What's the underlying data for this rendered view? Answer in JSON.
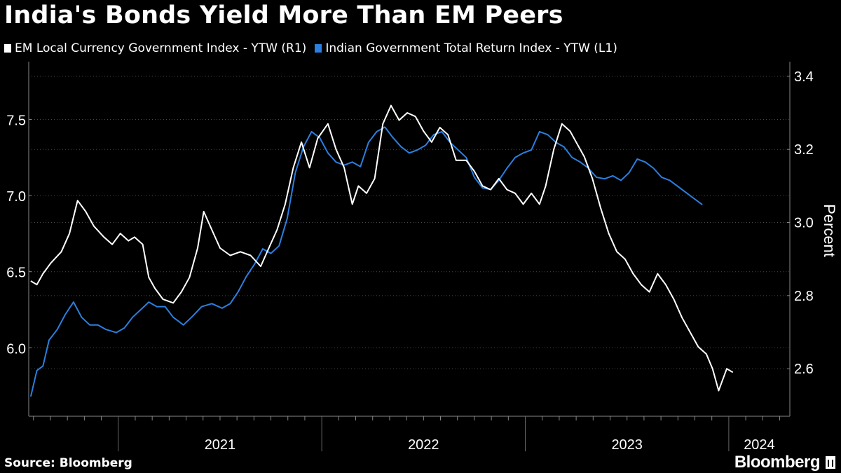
{
  "title": "India's Bonds Yield More Than EM Peers",
  "source": "Source: Bloomberg",
  "brand": "Bloomberg",
  "brand_icon": "bloomberg-terminal-icon",
  "colors": {
    "background": "#000000",
    "em_series": "#ffffff",
    "india_series": "#2b7fe0",
    "grid": "#4a4a4a",
    "text": "#ffffff"
  },
  "chart_data": {
    "type": "line",
    "title": "India's Bonds Yield More Than EM Peers",
    "x_tick_labels": [
      "2021",
      "2022",
      "2023",
      "2024"
    ],
    "x_range": [
      2020.56,
      2024.3
    ],
    "left_axis": {
      "ticks": [
        "6.0",
        "6.5",
        "7.0",
        "7.5"
      ],
      "range": [
        5.55,
        7.88
      ]
    },
    "right_axis": {
      "ticks": [
        "2.6",
        "2.8",
        "3.0",
        "3.2",
        "3.4"
      ],
      "range": [
        2.47,
        3.44
      ],
      "label": "Percent"
    },
    "grid": true,
    "legend_position": "top-left",
    "series": [
      {
        "name": "EM Local Currency Government Index - YTW (R1)",
        "axis": "right",
        "color": "#ffffff",
        "points": [
          [
            2020.57,
            2.84
          ],
          [
            2020.6,
            2.83
          ],
          [
            2020.63,
            2.86
          ],
          [
            2020.67,
            2.89
          ],
          [
            2020.72,
            2.92
          ],
          [
            2020.76,
            2.97
          ],
          [
            2020.8,
            3.06
          ],
          [
            2020.84,
            3.03
          ],
          [
            2020.88,
            2.99
          ],
          [
            2020.93,
            2.96
          ],
          [
            2020.97,
            2.94
          ],
          [
            2021.01,
            2.97
          ],
          [
            2021.05,
            2.95
          ],
          [
            2021.08,
            2.96
          ],
          [
            2021.12,
            2.94
          ],
          [
            2021.15,
            2.85
          ],
          [
            2021.18,
            2.82
          ],
          [
            2021.22,
            2.79
          ],
          [
            2021.27,
            2.78
          ],
          [
            2021.31,
            2.81
          ],
          [
            2021.35,
            2.85
          ],
          [
            2021.39,
            2.93
          ],
          [
            2021.42,
            3.03
          ],
          [
            2021.46,
            2.98
          ],
          [
            2021.5,
            2.93
          ],
          [
            2021.55,
            2.91
          ],
          [
            2021.6,
            2.92
          ],
          [
            2021.65,
            2.91
          ],
          [
            2021.7,
            2.88
          ],
          [
            2021.74,
            2.93
          ],
          [
            2021.78,
            2.98
          ],
          [
            2021.82,
            3.05
          ],
          [
            2021.86,
            3.15
          ],
          [
            2021.9,
            3.22
          ],
          [
            2021.94,
            3.15
          ],
          [
            2021.98,
            3.23
          ],
          [
            2022.03,
            3.27
          ],
          [
            2022.07,
            3.2
          ],
          [
            2022.11,
            3.15
          ],
          [
            2022.15,
            3.05
          ],
          [
            2022.18,
            3.1
          ],
          [
            2022.22,
            3.08
          ],
          [
            2022.26,
            3.12
          ],
          [
            2022.3,
            3.27
          ],
          [
            2022.34,
            3.32
          ],
          [
            2022.38,
            3.28
          ],
          [
            2022.42,
            3.3
          ],
          [
            2022.46,
            3.29
          ],
          [
            2022.5,
            3.25
          ],
          [
            2022.54,
            3.22
          ],
          [
            2022.58,
            3.26
          ],
          [
            2022.62,
            3.24
          ],
          [
            2022.66,
            3.17
          ],
          [
            2022.71,
            3.17
          ],
          [
            2022.75,
            3.14
          ],
          [
            2022.79,
            3.1
          ],
          [
            2022.83,
            3.09
          ],
          [
            2022.87,
            3.12
          ],
          [
            2022.91,
            3.09
          ],
          [
            2022.95,
            3.08
          ],
          [
            2022.99,
            3.05
          ],
          [
            2023.03,
            3.08
          ],
          [
            2023.07,
            3.05
          ],
          [
            2023.1,
            3.1
          ],
          [
            2023.14,
            3.2
          ],
          [
            2023.18,
            3.27
          ],
          [
            2023.22,
            3.25
          ],
          [
            2023.25,
            3.22
          ],
          [
            2023.29,
            3.18
          ],
          [
            2023.33,
            3.12
          ],
          [
            2023.37,
            3.04
          ],
          [
            2023.41,
            2.97
          ],
          [
            2023.45,
            2.92
          ],
          [
            2023.49,
            2.9
          ],
          [
            2023.53,
            2.86
          ],
          [
            2023.57,
            2.83
          ],
          [
            2023.61,
            2.81
          ],
          [
            2023.65,
            2.86
          ],
          [
            2023.69,
            2.83
          ],
          [
            2023.73,
            2.79
          ],
          [
            2023.77,
            2.74
          ],
          [
            2023.81,
            2.7
          ],
          [
            2023.85,
            2.66
          ],
          [
            2023.89,
            2.64
          ],
          [
            2023.92,
            2.6
          ],
          [
            2023.95,
            2.54
          ],
          [
            2023.97,
            2.57
          ],
          [
            2023.99,
            2.6
          ],
          [
            2024.02,
            2.59
          ]
        ]
      },
      {
        "name": "Indian Government Total Return Index - YTW (L1)",
        "axis": "left",
        "color": "#2b7fe0",
        "points": [
          [
            2020.57,
            5.68
          ],
          [
            2020.6,
            5.85
          ],
          [
            2020.63,
            5.88
          ],
          [
            2020.66,
            6.05
          ],
          [
            2020.7,
            6.12
          ],
          [
            2020.74,
            6.22
          ],
          [
            2020.78,
            6.3
          ],
          [
            2020.82,
            6.2
          ],
          [
            2020.86,
            6.15
          ],
          [
            2020.9,
            6.15
          ],
          [
            2020.94,
            6.12
          ],
          [
            2020.99,
            6.1
          ],
          [
            2021.03,
            6.13
          ],
          [
            2021.07,
            6.2
          ],
          [
            2021.11,
            6.25
          ],
          [
            2021.15,
            6.3
          ],
          [
            2021.19,
            6.27
          ],
          [
            2021.23,
            6.27
          ],
          [
            2021.27,
            6.2
          ],
          [
            2021.32,
            6.15
          ],
          [
            2021.36,
            6.2
          ],
          [
            2021.41,
            6.27
          ],
          [
            2021.46,
            6.29
          ],
          [
            2021.51,
            6.26
          ],
          [
            2021.55,
            6.29
          ],
          [
            2021.59,
            6.37
          ],
          [
            2021.63,
            6.47
          ],
          [
            2021.67,
            6.55
          ],
          [
            2021.71,
            6.65
          ],
          [
            2021.75,
            6.62
          ],
          [
            2021.79,
            6.67
          ],
          [
            2021.83,
            6.85
          ],
          [
            2021.87,
            7.15
          ],
          [
            2021.91,
            7.32
          ],
          [
            2021.95,
            7.42
          ],
          [
            2021.99,
            7.38
          ],
          [
            2022.03,
            7.28
          ],
          [
            2022.07,
            7.22
          ],
          [
            2022.11,
            7.2
          ],
          [
            2022.15,
            7.22
          ],
          [
            2022.19,
            7.19
          ],
          [
            2022.23,
            7.35
          ],
          [
            2022.27,
            7.42
          ],
          [
            2022.31,
            7.45
          ],
          [
            2022.35,
            7.38
          ],
          [
            2022.39,
            7.32
          ],
          [
            2022.43,
            7.28
          ],
          [
            2022.47,
            7.3
          ],
          [
            2022.51,
            7.33
          ],
          [
            2022.55,
            7.4
          ],
          [
            2022.59,
            7.42
          ],
          [
            2022.63,
            7.35
          ],
          [
            2022.67,
            7.3
          ],
          [
            2022.71,
            7.25
          ],
          [
            2022.75,
            7.12
          ],
          [
            2022.79,
            7.05
          ],
          [
            2022.83,
            7.04
          ],
          [
            2022.87,
            7.1
          ],
          [
            2022.91,
            7.18
          ],
          [
            2022.95,
            7.25
          ],
          [
            2022.99,
            7.28
          ],
          [
            2023.03,
            7.3
          ],
          [
            2023.07,
            7.42
          ],
          [
            2023.11,
            7.4
          ],
          [
            2023.15,
            7.35
          ],
          [
            2023.19,
            7.32
          ],
          [
            2023.23,
            7.25
          ],
          [
            2023.27,
            7.22
          ],
          [
            2023.31,
            7.18
          ],
          [
            2023.35,
            7.12
          ],
          [
            2023.39,
            7.11
          ],
          [
            2023.43,
            7.13
          ],
          [
            2023.47,
            7.1
          ],
          [
            2023.51,
            7.15
          ],
          [
            2023.55,
            7.24
          ],
          [
            2023.59,
            7.22
          ],
          [
            2023.63,
            7.18
          ],
          [
            2023.67,
            7.12
          ],
          [
            2023.71,
            7.1
          ],
          [
            2023.75,
            7.06
          ],
          [
            2023.79,
            7.02
          ],
          [
            2023.83,
            6.98
          ],
          [
            2023.87,
            6.94
          ]
        ]
      }
    ]
  }
}
